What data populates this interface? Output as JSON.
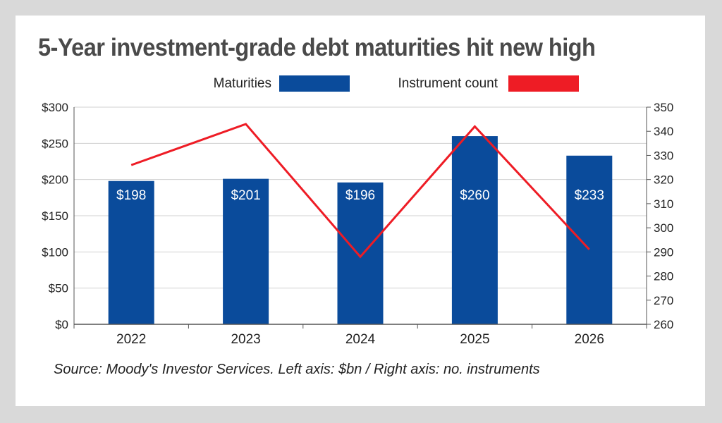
{
  "title": "5-Year investment-grade debt maturities hit new high",
  "source": "Source: Moody's Investor Services. Left axis: $bn / Right axis: no. instruments",
  "colors": {
    "bar": "#0a4b9b",
    "line": "#ee1c25",
    "axis": "#555555",
    "grid": "#d0d0d0"
  },
  "chart_data": {
    "type": "bar",
    "categories": [
      "2022",
      "2023",
      "2024",
      "2025",
      "2026"
    ],
    "series": [
      {
        "name": "Maturities",
        "type": "bar",
        "axis": "left",
        "values": [
          198,
          201,
          196,
          260,
          233
        ],
        "labels": [
          "$198",
          "$201",
          "$196",
          "$260",
          "$233"
        ]
      },
      {
        "name": "Instrument count",
        "type": "line",
        "axis": "right",
        "values": [
          326,
          343,
          288,
          342,
          291
        ]
      }
    ],
    "left_axis": {
      "ylim": [
        0,
        300
      ],
      "ticks": [
        0,
        50,
        100,
        150,
        200,
        250,
        300
      ],
      "tick_labels": [
        "$0",
        "$50",
        "$100",
        "$150",
        "$200",
        "$250",
        "$300"
      ]
    },
    "right_axis": {
      "ylim": [
        260,
        350
      ],
      "ticks": [
        260,
        270,
        280,
        290,
        300,
        310,
        320,
        330,
        340,
        350
      ],
      "tick_labels": [
        "260",
        "270",
        "280",
        "290",
        "300",
        "310",
        "320",
        "330",
        "340",
        "350"
      ]
    },
    "grid": true,
    "legend_position": "top"
  }
}
